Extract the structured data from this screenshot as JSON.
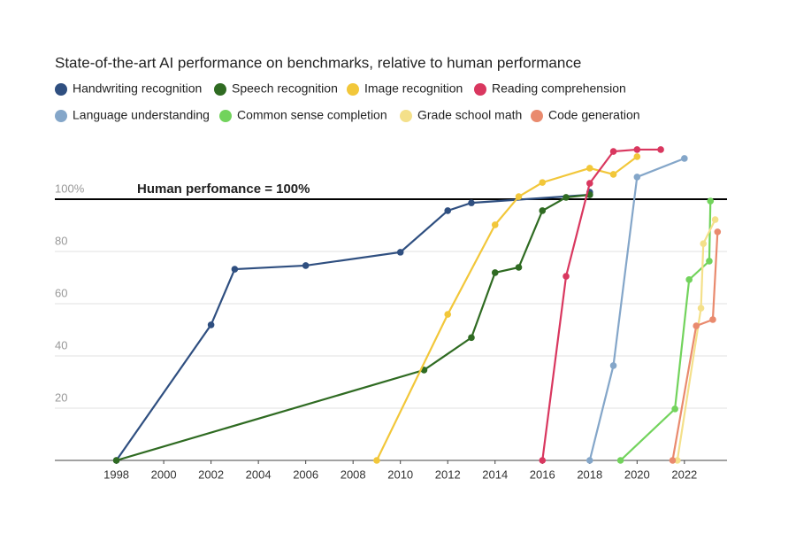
{
  "chart_data": {
    "type": "line",
    "title": "State-of-the-art AI performance on benchmarks, relative to human performance",
    "xlim": [
      1995.4,
      2023.8
    ],
    "ylim": [
      0,
      120
    ],
    "xticks": [
      1998,
      2000,
      2002,
      2004,
      2006,
      2008,
      2010,
      2012,
      2014,
      2016,
      2018,
      2020,
      2022
    ],
    "yticks": [
      20,
      40,
      60,
      80,
      {
        "value": 100,
        "label": "100%"
      }
    ],
    "grid": true,
    "reference_line": {
      "value": 100,
      "label": "Human perfomance = 100%"
    },
    "series": [
      {
        "name": "Handwriting recognition",
        "color": "#2f4f80",
        "x": [
          1998,
          2002,
          2003,
          2006,
          2010,
          2012,
          2013,
          2018,
          2018
        ],
        "values": [
          0,
          51.9,
          73.2,
          74.6,
          79.7,
          95.6,
          98.6,
          101.7,
          102.7
        ]
      },
      {
        "name": "Speech recognition",
        "color": "#2f6b22",
        "x": [
          1998,
          2011,
          2013,
          2014,
          2015,
          2016,
          2017,
          2018
        ],
        "values": [
          0,
          34.6,
          47,
          71.9,
          73.9,
          95.6,
          100.7,
          101.7
        ]
      },
      {
        "name": "Image recognition",
        "color": "#f2c73a",
        "x": [
          2009,
          2012,
          2014,
          2015,
          2016,
          2018,
          2019,
          2020
        ],
        "values": [
          0,
          55.9,
          90.2,
          101,
          106.4,
          111.9,
          109.5,
          116.3
        ]
      },
      {
        "name": "Reading comprehension",
        "color": "#d9375f",
        "x": [
          2016,
          2017,
          2018,
          2019,
          2020,
          2021
        ],
        "values": [
          0,
          70.5,
          106.1,
          118.3,
          119,
          119
        ]
      },
      {
        "name": "Language understanding",
        "color": "#84a6c9",
        "x": [
          2018,
          2019,
          2020,
          2022
        ],
        "values": [
          0,
          36.3,
          108.5,
          115.6
        ]
      },
      {
        "name": "Common sense completion",
        "color": "#72d35c",
        "x": [
          2019.3,
          2021.6,
          2022.2,
          2023.05,
          2023.1
        ],
        "values": [
          0,
          19.7,
          69.2,
          76.3,
          99.3
        ]
      },
      {
        "name": "Grade school math",
        "color": "#f4e08a",
        "x": [
          2021.7,
          2022.7,
          2022.8,
          2023.3
        ],
        "values": [
          0,
          58.3,
          83,
          92.2
        ]
      },
      {
        "name": "Code generation",
        "color": "#e98a6e",
        "x": [
          2021.5,
          2022.5,
          2023.2,
          2023.4
        ],
        "values": [
          0,
          51.5,
          53.9,
          87.5
        ]
      }
    ]
  }
}
